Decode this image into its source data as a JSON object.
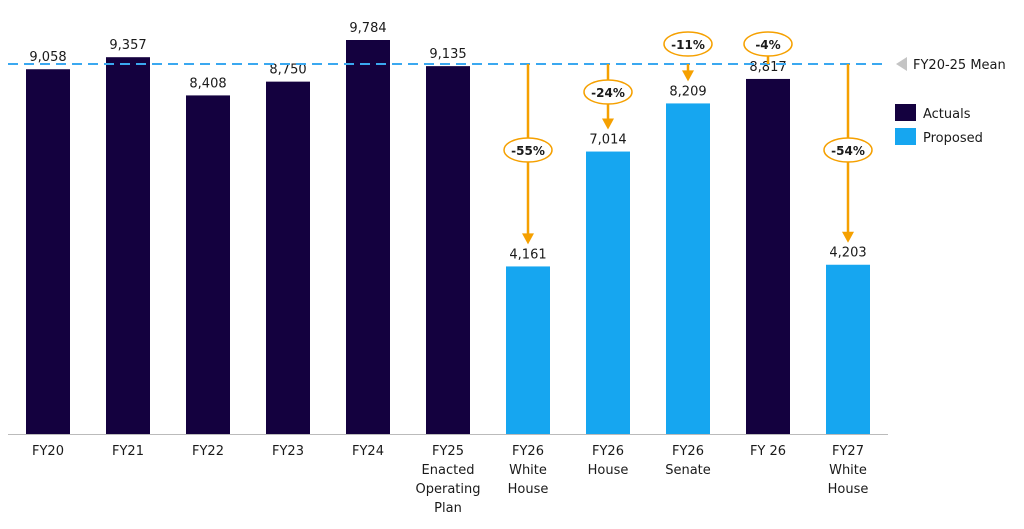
{
  "chart_data": {
    "type": "bar",
    "title": "",
    "xlabel": "",
    "ylabel": "",
    "ylim": [
      0,
      9784
    ],
    "grid": false,
    "categories": [
      [
        "FY20"
      ],
      [
        "FY21"
      ],
      [
        "FY22"
      ],
      [
        "FY23"
      ],
      [
        "FY24"
      ],
      [
        "FY25",
        "Enacted",
        "Operating",
        "Plan"
      ],
      [
        "FY26",
        "White",
        "House"
      ],
      [
        "FY26",
        "House"
      ],
      [
        "FY26",
        "Senate"
      ],
      [
        "FY 26"
      ],
      [
        "FY27",
        "White",
        "House"
      ]
    ],
    "values": [
      9058,
      9357,
      8408,
      8750,
      9784,
      9135,
      4161,
      7014,
      8209,
      8817,
      4203
    ],
    "value_labels": [
      "9,058",
      "9,357",
      "8,408",
      "8,750",
      "9,784",
      "9,135",
      "4,161",
      "7,014",
      "8,209",
      "8,817",
      "4,203"
    ],
    "series_of_bar": [
      "Actuals",
      "Actuals",
      "Actuals",
      "Actuals",
      "Actuals",
      "Actuals",
      "Proposed",
      "Proposed",
      "Proposed",
      "Actuals",
      "Proposed"
    ],
    "legend": {
      "placement": "right",
      "entries": [
        {
          "name": "Actuals",
          "color": "#14013f"
        },
        {
          "name": "Proposed",
          "color": "#16a6f0"
        }
      ]
    },
    "reference_line": {
      "label": "FY20-25 Mean",
      "value": 9082,
      "color": "#3aa8f0"
    },
    "annotations": [
      {
        "bar_index": 6,
        "text": "-55%"
      },
      {
        "bar_index": 7,
        "text": "-24%"
      },
      {
        "bar_index": 8,
        "text": "-11%"
      },
      {
        "bar_index": 9,
        "text": "-4%"
      },
      {
        "bar_index": 10,
        "text": "-54%"
      }
    ],
    "annotation_color": "#f5a000"
  }
}
